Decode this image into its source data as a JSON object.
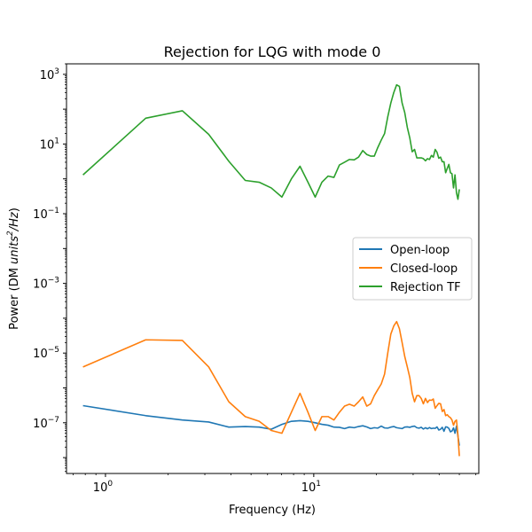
{
  "chart_data": {
    "type": "line",
    "title": "Rejection for LQG with mode 0",
    "xlabel": "Frequency (Hz)",
    "ylabel_parts": [
      "Power (DM ",
      "units",
      "2",
      "/Hz",
      ")"
    ],
    "xscale": "log",
    "yscale": "log",
    "xlim": [
      0.65,
      62
    ],
    "ylim": [
      3.5e-09,
      2000
    ],
    "x_ticks": [
      {
        "value": 1,
        "base": "10",
        "exp": "0"
      },
      {
        "value": 10,
        "base": "10",
        "exp": "1"
      }
    ],
    "y_ticks": [
      {
        "value": 1e-07,
        "base": "10",
        "exp": "−7"
      },
      {
        "value": 1e-05,
        "base": "10",
        "exp": "−5"
      },
      {
        "value": 0.001,
        "base": "10",
        "exp": "−3"
      },
      {
        "value": 0.1,
        "base": "10",
        "exp": "−1"
      },
      {
        "value": 10,
        "base": "10",
        "exp": "1"
      },
      {
        "value": 1000,
        "base": "10",
        "exp": "3"
      }
    ],
    "grid": false,
    "legend_position": "center-right",
    "series": [
      {
        "name": "Open-loop",
        "color": "#1f77b4",
        "x": [
          0.78,
          1.56,
          2.34,
          3.13,
          3.91,
          4.69,
          5.47,
          6.25,
          7.03,
          7.81,
          8.59,
          9.38,
          10.16,
          10.94,
          11.72,
          12.5,
          13.28,
          14.06,
          14.84,
          15.63,
          16.41,
          17.19,
          17.97,
          18.75,
          19.53,
          20.31,
          21.09,
          21.88,
          22.66,
          23.44,
          24.22,
          25.0,
          25.78,
          26.56,
          27.34,
          28.13,
          28.91,
          29.69,
          30.47,
          31.25,
          32.03,
          32.81,
          33.59,
          34.38,
          35.16,
          35.94,
          36.72,
          37.5,
          38.28,
          39.06,
          39.84,
          40.63,
          41.41,
          42.19,
          42.97,
          43.75,
          44.53,
          45.31,
          46.09,
          46.88,
          47.66,
          48.44,
          49.22,
          50.0
        ],
        "y": [
          3.1e-07,
          1.6e-07,
          1.2e-07,
          1.05e-07,
          7.5e-08,
          7.8e-08,
          7.5e-08,
          6.5e-08,
          9e-08,
          1.1e-07,
          1.15e-07,
          1.1e-07,
          1e-07,
          9e-08,
          8.5e-08,
          7.5e-08,
          7.4e-08,
          6.8e-08,
          7.5e-08,
          7.2e-08,
          7.8e-08,
          8.2e-08,
          7.6e-08,
          6.8e-08,
          7.2e-08,
          7e-08,
          8e-08,
          7.1e-08,
          7e-08,
          7.5e-08,
          7.8e-08,
          7.2e-08,
          7e-08,
          6.8e-08,
          7.5e-08,
          7.6e-08,
          7.4e-08,
          7.8e-08,
          8e-08,
          7.2e-08,
          7e-08,
          7.4e-08,
          6.6e-08,
          7.2e-08,
          6.7e-08,
          7.3e-08,
          6.8e-08,
          7e-08,
          6.9e-08,
          7.6e-08,
          6.2e-08,
          6.5e-08,
          7.4e-08,
          5.7e-08,
          7.6e-08,
          7.5e-08,
          6.9e-08,
          5.5e-08,
          5.8e-08,
          7.1e-08,
          5e-08,
          8e-08,
          4.2e-08,
          2.2e-08
        ]
      },
      {
        "name": "Closed-loop",
        "color": "#ff7f0e",
        "x": [
          0.78,
          1.56,
          2.34,
          3.13,
          3.91,
          4.69,
          5.47,
          6.25,
          7.03,
          7.81,
          8.59,
          9.38,
          10.16,
          10.94,
          11.72,
          12.5,
          13.28,
          14.06,
          14.84,
          15.63,
          16.41,
          17.19,
          17.97,
          18.75,
          19.53,
          20.31,
          21.09,
          21.88,
          22.66,
          23.44,
          24.22,
          25.0,
          25.78,
          26.56,
          27.34,
          28.13,
          28.91,
          29.69,
          30.47,
          31.25,
          32.03,
          32.81,
          33.59,
          34.38,
          35.16,
          35.94,
          36.72,
          37.5,
          38.28,
          39.06,
          39.84,
          40.63,
          41.41,
          42.19,
          42.97,
          43.75,
          44.53,
          45.31,
          46.09,
          46.88,
          47.66,
          48.44,
          49.22,
          50.0
        ],
        "y": [
          4e-06,
          2.4e-05,
          2.3e-05,
          4e-06,
          4e-07,
          1.5e-07,
          1.1e-07,
          6e-08,
          5e-08,
          2e-07,
          7e-07,
          2e-07,
          6e-08,
          1.5e-07,
          1.5e-07,
          1.2e-07,
          2e-07,
          3e-07,
          3.4e-07,
          3e-07,
          4e-07,
          5.5e-07,
          3e-07,
          3.5e-07,
          6e-07,
          9e-07,
          1.3e-06,
          2.5e-06,
          1e-05,
          3.5e-05,
          6e-05,
          8e-05,
          5e-05,
          2e-05,
          8e-06,
          4e-06,
          2e-06,
          7e-07,
          4e-07,
          6e-07,
          6e-07,
          5e-07,
          3.5e-07,
          5e-07,
          3.8e-07,
          4.5e-07,
          4.4e-07,
          4.8e-07,
          2.6e-07,
          3.1e-07,
          3.6e-07,
          3.5e-07,
          2.1e-07,
          2.4e-07,
          1.6e-07,
          1.7e-07,
          1.5e-07,
          1.4e-07,
          1.2e-07,
          8.5e-08,
          1.1e-07,
          1.2e-07,
          4.6e-08,
          1.1e-08
        ]
      },
      {
        "name": "Rejection TF",
        "color": "#2ca02c",
        "x": [
          0.78,
          1.56,
          2.34,
          3.13,
          3.91,
          4.69,
          5.47,
          6.25,
          7.03,
          7.81,
          8.59,
          9.38,
          10.16,
          10.94,
          11.72,
          12.5,
          13.28,
          14.06,
          14.84,
          15.63,
          16.41,
          17.19,
          17.97,
          18.75,
          19.53,
          20.31,
          21.09,
          21.88,
          22.66,
          23.44,
          24.22,
          25.0,
          25.78,
          26.56,
          27.34,
          28.13,
          28.91,
          29.69,
          30.47,
          31.25,
          32.03,
          32.81,
          33.59,
          34.38,
          35.16,
          35.94,
          36.72,
          37.5,
          38.28,
          39.06,
          39.84,
          40.63,
          41.41,
          42.19,
          42.97,
          43.75,
          44.53,
          45.31,
          46.09,
          46.88,
          47.66,
          48.44,
          49.22,
          50.0
        ],
        "y": [
          1.3,
          55,
          90,
          19,
          3.2,
          0.9,
          0.8,
          0.55,
          0.3,
          1.0,
          2.3,
          0.8,
          0.3,
          0.8,
          1.2,
          1.1,
          2.5,
          3.0,
          3.6,
          3.5,
          4.2,
          6.5,
          5.0,
          4.5,
          4.5,
          8,
          13,
          20,
          60,
          150,
          300,
          500,
          450,
          150,
          80,
          30,
          15,
          6,
          7,
          4,
          4,
          4,
          3.8,
          3.3,
          3.8,
          3.6,
          4.7,
          4.2,
          7.0,
          5.8,
          3.9,
          4.2,
          3.1,
          3.1,
          1.5,
          2.0,
          2.6,
          1.5,
          1.4,
          0.55,
          1.3,
          0.4,
          0.26,
          0.5
        ]
      }
    ]
  }
}
